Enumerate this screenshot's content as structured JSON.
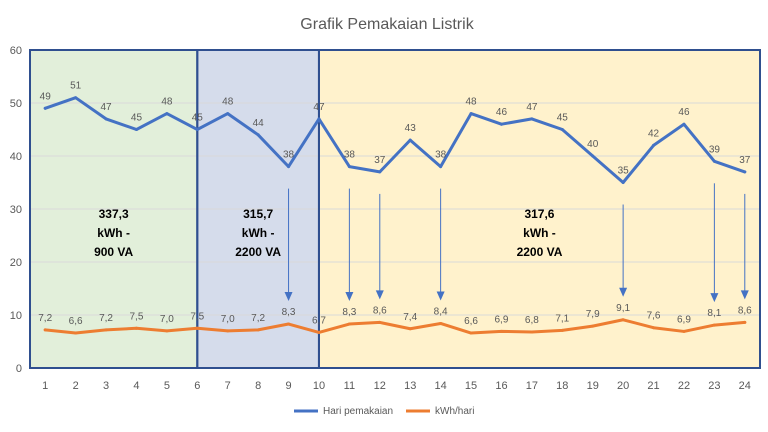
{
  "chart_data": {
    "type": "line",
    "title": "Grafik Pemakaian Listrik",
    "xlabel": "",
    "ylabel": "",
    "ylim": [
      0,
      60
    ],
    "y_ticks": [
      "0",
      "10",
      "20",
      "30",
      "40",
      "50",
      "60"
    ],
    "categories": [
      "1",
      "2",
      "3",
      "4",
      "5",
      "6",
      "7",
      "8",
      "9",
      "10",
      "11",
      "12",
      "13",
      "14",
      "15",
      "16",
      "17",
      "18",
      "19",
      "20",
      "21",
      "22",
      "23",
      "24"
    ],
    "series": [
      {
        "name": "Hari pemakaian",
        "color": "#4472C4",
        "values": [
          49,
          51,
          47,
          45,
          48,
          45,
          48,
          44,
          38,
          47,
          38,
          37,
          43,
          38,
          48,
          46,
          47,
          45,
          40,
          35,
          42,
          46,
          39,
          37
        ],
        "labels": [
          "49",
          "51",
          "47",
          "45",
          "48",
          "45",
          "48",
          "44",
          "38",
          "47",
          "38",
          "37",
          "43",
          "38",
          "48",
          "46",
          "47",
          "45",
          "40",
          "35",
          "42",
          "46",
          "39",
          "37"
        ]
      },
      {
        "name": "kWh/hari",
        "color": "#ED7D31",
        "values": [
          7.2,
          6.6,
          7.2,
          7.5,
          7.0,
          7.5,
          7.0,
          7.2,
          8.3,
          6.7,
          8.3,
          8.6,
          7.4,
          8.4,
          6.6,
          6.9,
          6.8,
          7.1,
          7.9,
          9.1,
          7.6,
          6.9,
          8.1,
          8.6
        ],
        "labels": [
          "7,2",
          "6,6",
          "7,2",
          "7,5",
          "7,0",
          "7,5",
          "7,0",
          "7,2",
          "8,3",
          "6,7",
          "8,3",
          "8,6",
          "7,4",
          "8,4",
          "6,6",
          "6,9",
          "6,8",
          "7,1",
          "7,9",
          "9,1",
          "7,6",
          "6,9",
          "8,1",
          "8,6"
        ]
      }
    ],
    "regions": [
      {
        "from": 0.5,
        "to": 6,
        "fill": "#E2EFDA",
        "lines": [
          "337,3",
          "kWh -",
          "900 VA"
        ]
      },
      {
        "from": 6,
        "to": 10,
        "fill": "#D5DCEB",
        "lines": [
          "315,7",
          "kWh -",
          "2200 VA"
        ]
      },
      {
        "from": 10,
        "to": 24.5,
        "fill": "#FFF2CC",
        "lines": [
          "317,6",
          "kWh -",
          "2200 VA"
        ]
      }
    ],
    "arrows_at": [
      9,
      11,
      12,
      14,
      20,
      23,
      24
    ],
    "grid": true,
    "legend_position": "bottom"
  }
}
